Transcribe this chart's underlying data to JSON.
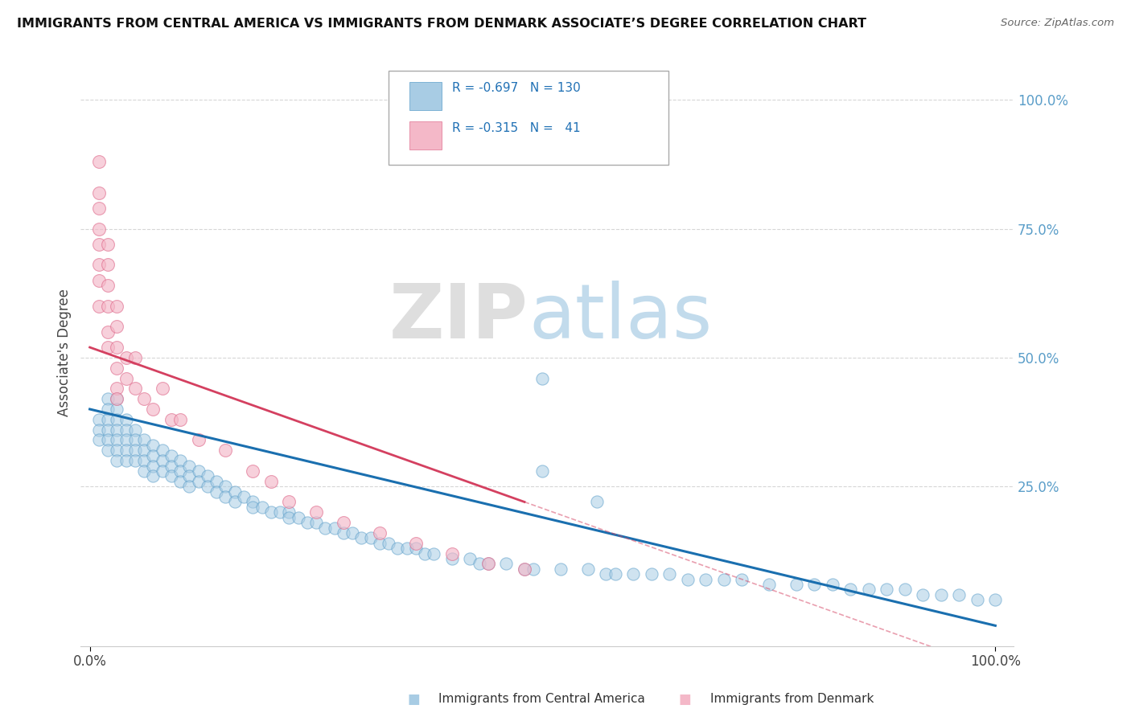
{
  "title": "IMMIGRANTS FROM CENTRAL AMERICA VS IMMIGRANTS FROM DENMARK ASSOCIATE’S DEGREE CORRELATION CHART",
  "source": "Source: ZipAtlas.com",
  "ylabel": "Associate's Degree",
  "color_blue": "#a8cce4",
  "color_blue_edge": "#5b9ec9",
  "color_blue_line": "#1a6faf",
  "color_pink": "#f4b8c8",
  "color_pink_edge": "#e07090",
  "color_pink_line": "#d44060",
  "color_legend_blue": "#2171b5",
  "color_legend_pink": "#d44060",
  "background": "#ffffff",
  "grid_color": "#cccccc",
  "right_tick_color": "#5b9ec9",
  "blue_scatter_x": [
    0.01,
    0.01,
    0.01,
    0.02,
    0.02,
    0.02,
    0.02,
    0.02,
    0.02,
    0.03,
    0.03,
    0.03,
    0.03,
    0.03,
    0.03,
    0.03,
    0.04,
    0.04,
    0.04,
    0.04,
    0.04,
    0.05,
    0.05,
    0.05,
    0.05,
    0.06,
    0.06,
    0.06,
    0.06,
    0.07,
    0.07,
    0.07,
    0.07,
    0.08,
    0.08,
    0.08,
    0.09,
    0.09,
    0.09,
    0.1,
    0.1,
    0.1,
    0.11,
    0.11,
    0.11,
    0.12,
    0.12,
    0.13,
    0.13,
    0.14,
    0.14,
    0.15,
    0.15,
    0.16,
    0.16,
    0.17,
    0.18,
    0.18,
    0.19,
    0.2,
    0.21,
    0.22,
    0.22,
    0.23,
    0.24,
    0.25,
    0.26,
    0.27,
    0.28,
    0.29,
    0.3,
    0.31,
    0.32,
    0.33,
    0.34,
    0.35,
    0.36,
    0.37,
    0.38,
    0.4,
    0.42,
    0.43,
    0.44,
    0.46,
    0.48,
    0.49,
    0.5,
    0.5,
    0.52,
    0.55,
    0.56,
    0.57,
    0.58,
    0.6,
    0.62,
    0.64,
    0.66,
    0.68,
    0.7,
    0.72,
    0.75,
    0.78,
    0.8,
    0.82,
    0.84,
    0.86,
    0.88,
    0.9,
    0.92,
    0.94,
    0.96,
    0.98,
    1.0
  ],
  "blue_scatter_y": [
    0.38,
    0.36,
    0.34,
    0.42,
    0.4,
    0.38,
    0.36,
    0.34,
    0.32,
    0.42,
    0.4,
    0.38,
    0.36,
    0.34,
    0.32,
    0.3,
    0.38,
    0.36,
    0.34,
    0.32,
    0.3,
    0.36,
    0.34,
    0.32,
    0.3,
    0.34,
    0.32,
    0.3,
    0.28,
    0.33,
    0.31,
    0.29,
    0.27,
    0.32,
    0.3,
    0.28,
    0.31,
    0.29,
    0.27,
    0.3,
    0.28,
    0.26,
    0.29,
    0.27,
    0.25,
    0.28,
    0.26,
    0.27,
    0.25,
    0.26,
    0.24,
    0.25,
    0.23,
    0.24,
    0.22,
    0.23,
    0.22,
    0.21,
    0.21,
    0.2,
    0.2,
    0.2,
    0.19,
    0.19,
    0.18,
    0.18,
    0.17,
    0.17,
    0.16,
    0.16,
    0.15,
    0.15,
    0.14,
    0.14,
    0.13,
    0.13,
    0.13,
    0.12,
    0.12,
    0.11,
    0.11,
    0.1,
    0.1,
    0.1,
    0.09,
    0.09,
    0.28,
    0.46,
    0.09,
    0.09,
    0.22,
    0.08,
    0.08,
    0.08,
    0.08,
    0.08,
    0.07,
    0.07,
    0.07,
    0.07,
    0.06,
    0.06,
    0.06,
    0.06,
    0.05,
    0.05,
    0.05,
    0.05,
    0.04,
    0.04,
    0.04,
    0.03,
    0.03
  ],
  "pink_scatter_x": [
    0.01,
    0.01,
    0.01,
    0.01,
    0.01,
    0.01,
    0.01,
    0.01,
    0.02,
    0.02,
    0.02,
    0.02,
    0.02,
    0.02,
    0.03,
    0.03,
    0.03,
    0.03,
    0.03,
    0.03,
    0.04,
    0.04,
    0.05,
    0.05,
    0.06,
    0.07,
    0.08,
    0.09,
    0.1,
    0.12,
    0.15,
    0.18,
    0.2,
    0.22,
    0.25,
    0.28,
    0.32,
    0.36,
    0.4,
    0.44,
    0.48
  ],
  "pink_scatter_y": [
    0.88,
    0.82,
    0.79,
    0.75,
    0.72,
    0.68,
    0.65,
    0.6,
    0.72,
    0.68,
    0.64,
    0.6,
    0.55,
    0.52,
    0.6,
    0.56,
    0.52,
    0.48,
    0.44,
    0.42,
    0.5,
    0.46,
    0.5,
    0.44,
    0.42,
    0.4,
    0.44,
    0.38,
    0.38,
    0.34,
    0.32,
    0.28,
    0.26,
    0.22,
    0.2,
    0.18,
    0.16,
    0.14,
    0.12,
    0.1,
    0.09
  ],
  "blue_line_x0": 0.0,
  "blue_line_x1": 1.0,
  "blue_line_y0": 0.4,
  "blue_line_y1": -0.02,
  "pink_line_x0": 0.0,
  "pink_line_x1": 0.48,
  "pink_line_y0": 0.52,
  "pink_line_y1": 0.22,
  "ylim_min": -0.06,
  "ylim_max": 1.08,
  "xlim_min": -0.01,
  "xlim_max": 1.02
}
